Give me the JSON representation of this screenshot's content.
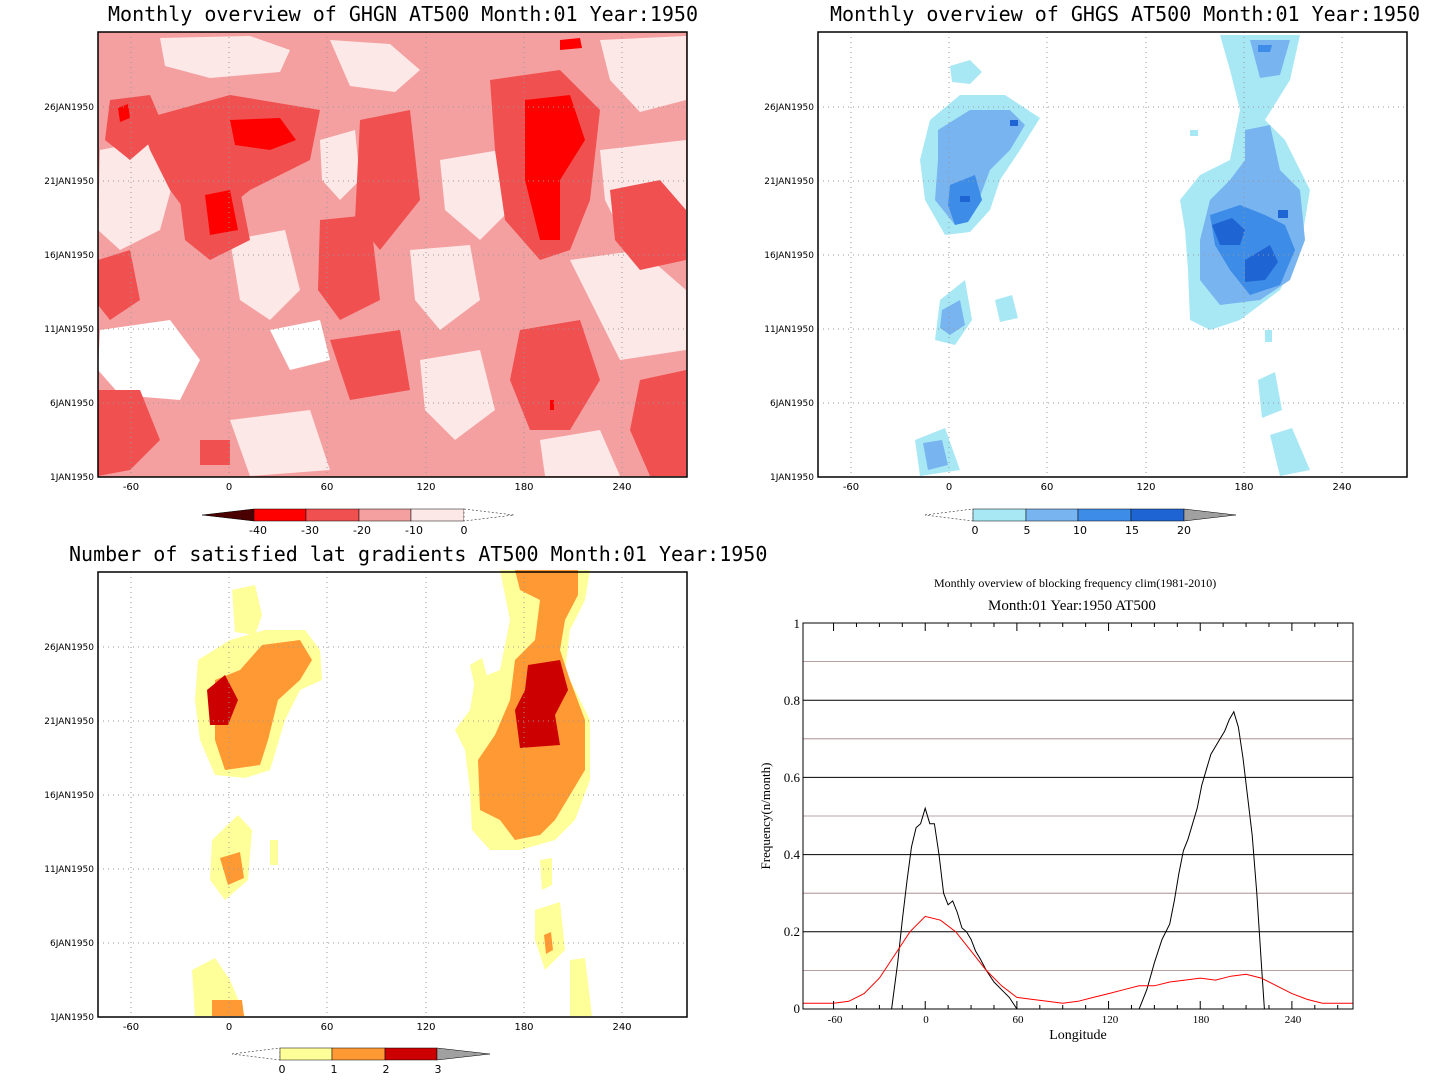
{
  "panels": {
    "ghgn": {
      "title": "Monthly overview of GHGN AT500 Month:01 Year:1950",
      "y_ticks": [
        "1JAN1950",
        "6JAN1950",
        "11JAN1950",
        "16JAN1950",
        "21JAN1950",
        "26JAN1950"
      ],
      "x_ticks": [
        "-60",
        "0",
        "60",
        "120",
        "180",
        "240"
      ],
      "colorbar": {
        "labels": [
          "-40",
          "-30",
          "-20",
          "-10",
          "0"
        ],
        "colors": [
          "#4a0000",
          "#ff0000",
          "#f05050",
          "#f4a0a0",
          "#fde8e8"
        ]
      }
    },
    "ghgs": {
      "title": "Monthly overview of GHGS AT500 Month:01 Year:1950",
      "y_ticks": [
        "1JAN1950",
        "6JAN1950",
        "11JAN1950",
        "16JAN1950",
        "21JAN1950",
        "26JAN1950"
      ],
      "x_ticks": [
        "-60",
        "0",
        "60",
        "120",
        "180",
        "240"
      ],
      "colorbar": {
        "labels": [
          "0",
          "5",
          "10",
          "15",
          "20"
        ],
        "colors": [
          "#a8e8f4",
          "#78b4f0",
          "#3c8ce8",
          "#1e64d2",
          "#a0a0a0"
        ]
      }
    },
    "lat": {
      "title": "Number of satisfied lat gradients AT500 Month:01 Year:1950",
      "y_ticks": [
        "1JAN1950",
        "6JAN1950",
        "11JAN1950",
        "16JAN1950",
        "21JAN1950",
        "26JAN1950"
      ],
      "x_ticks": [
        "-60",
        "0",
        "60",
        "120",
        "180",
        "240"
      ],
      "colorbar": {
        "labels": [
          "0",
          "1",
          "2",
          "3"
        ],
        "colors": [
          "#ffff99",
          "#ff9933",
          "#cc0000",
          "#a0a0a0"
        ]
      }
    },
    "freq": {
      "title1": "Monthly overview of blocking frequency clim(1981-2010)",
      "title2": "Month:01 Year:1950  AT500",
      "ylabel": "Frequency(n/month)",
      "xlabel": "Longitude",
      "x_ticks": [
        "-60",
        "0",
        "60",
        "120",
        "180",
        "240"
      ],
      "y_ticks": [
        "0",
        "0.2",
        "0.4",
        "0.6",
        "0.8",
        "1"
      ]
    }
  },
  "chart_data": [
    {
      "type": "heatmap",
      "title": "Monthly overview of GHGN AT500 Month:01 Year:1950",
      "x_range": [
        -75,
        285
      ],
      "y_range": [
        "1JAN1950",
        "30JAN1950"
      ],
      "levels": [
        -40,
        -30,
        -20,
        -10,
        0
      ],
      "colors": {
        "lt-40": "#4a0000",
        "-40..-30": "#ff0000",
        "-30..-20": "#f05050",
        "-20..-10": "#f4a0a0",
        "-10..0": "#fde8e8"
      }
    },
    {
      "type": "heatmap",
      "title": "Monthly overview of GHGS AT500 Month:01 Year:1950",
      "x_range": [
        -75,
        285
      ],
      "y_range": [
        "1JAN1950",
        "30JAN1950"
      ],
      "levels": [
        0,
        5,
        10,
        15,
        20
      ],
      "colors": {
        "0..5": "#a8e8f4",
        "5..10": "#78b4f0",
        "10..15": "#3c8ce8",
        "15..20": "#1e64d2",
        "gt20": "#a0a0a0"
      }
    },
    {
      "type": "heatmap",
      "title": "Number of satisfied lat gradients AT500 Month:01 Year:1950",
      "x_range": [
        -75,
        285
      ],
      "y_range": [
        "1JAN1950",
        "30JAN1950"
      ],
      "levels": [
        0,
        1,
        2,
        3
      ],
      "colors": {
        "0..1": "#ffff99",
        "1..2": "#ff9933",
        "2..3": "#cc0000",
        "gt3": "#a0a0a0"
      }
    },
    {
      "type": "line",
      "title": "Monthly overview of blocking frequency clim(1981-2010)",
      "subtitle": "Month:01 Year:1950  AT500",
      "xlabel": "Longitude",
      "ylabel": "Frequency(n/month)",
      "xlim": [
        -80,
        280
      ],
      "ylim": [
        0,
        1
      ],
      "grid": true,
      "series": [
        {
          "color": "#000000",
          "x": [
            -22,
            -18,
            -15,
            -12,
            -9,
            -6,
            -3,
            0,
            3,
            6,
            9,
            12,
            15,
            18,
            21,
            24,
            27,
            30,
            33,
            36,
            40,
            45,
            50,
            55,
            60,
            140,
            145,
            150,
            155,
            160,
            163,
            166,
            169,
            172,
            175,
            178,
            181,
            184,
            187,
            190,
            193,
            196,
            199,
            202,
            205,
            208,
            211,
            214,
            217,
            220,
            222
          ],
          "y": [
            0,
            0.12,
            0.23,
            0.33,
            0.42,
            0.47,
            0.48,
            0.52,
            0.48,
            0.48,
            0.4,
            0.3,
            0.27,
            0.28,
            0.25,
            0.21,
            0.2,
            0.18,
            0.15,
            0.13,
            0.1,
            0.07,
            0.05,
            0.03,
            0,
            0,
            0.05,
            0.12,
            0.18,
            0.22,
            0.28,
            0.35,
            0.41,
            0.44,
            0.48,
            0.52,
            0.58,
            0.62,
            0.66,
            0.68,
            0.7,
            0.72,
            0.75,
            0.77,
            0.73,
            0.65,
            0.55,
            0.45,
            0.3,
            0.12,
            0
          ]
        },
        {
          "color": "#ff0000",
          "x": [
            -80,
            -70,
            -60,
            -50,
            -40,
            -30,
            -20,
            -10,
            0,
            10,
            20,
            30,
            40,
            50,
            60,
            70,
            80,
            90,
            100,
            110,
            120,
            130,
            140,
            150,
            160,
            170,
            180,
            190,
            200,
            210,
            220,
            230,
            240,
            250,
            260,
            270,
            280
          ],
          "y": [
            0.015,
            0.015,
            0.015,
            0.02,
            0.04,
            0.08,
            0.14,
            0.2,
            0.24,
            0.23,
            0.2,
            0.15,
            0.1,
            0.06,
            0.03,
            0.025,
            0.02,
            0.015,
            0.02,
            0.03,
            0.04,
            0.05,
            0.06,
            0.06,
            0.07,
            0.075,
            0.08,
            0.075,
            0.085,
            0.09,
            0.08,
            0.06,
            0.04,
            0.025,
            0.015,
            0.015,
            0.015
          ]
        }
      ]
    }
  ]
}
